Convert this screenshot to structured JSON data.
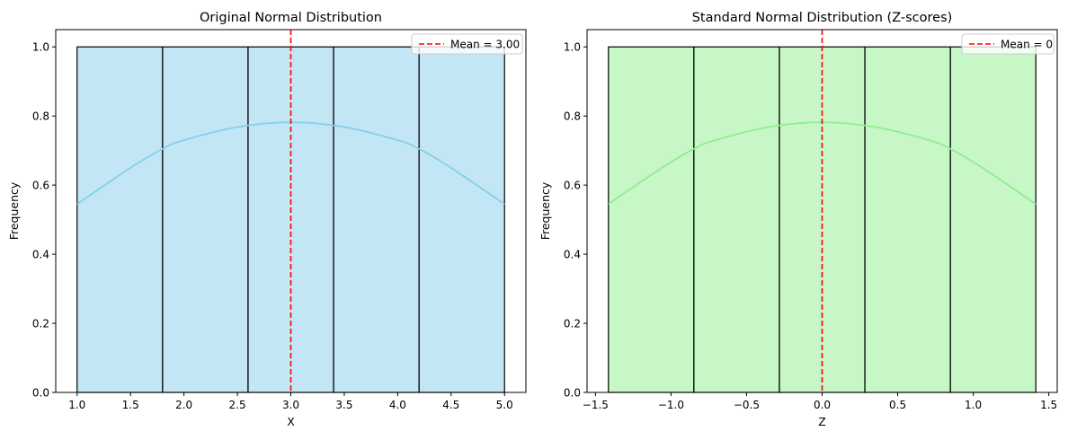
{
  "chart_data": [
    {
      "type": "bar",
      "subtype": "histogram_with_kde",
      "title": "Original Normal Distribution",
      "xlabel": "X",
      "ylabel": "Frequency",
      "xlim": [
        0.8,
        5.2
      ],
      "ylim": [
        0,
        1.05
      ],
      "xticks": [
        1.0,
        1.5,
        2.0,
        2.5,
        3.0,
        3.5,
        4.0,
        4.5,
        5.0
      ],
      "xtick_labels": [
        "1.0",
        "1.5",
        "2.0",
        "2.5",
        "3.0",
        "3.5",
        "4.0",
        "4.5",
        "5.0"
      ],
      "yticks": [
        0.0,
        0.2,
        0.4,
        0.6,
        0.8,
        1.0
      ],
      "ytick_labels": [
        "0.0",
        "0.2",
        "0.4",
        "0.6",
        "0.8",
        "1.0"
      ],
      "bins": [
        {
          "start": 1.0,
          "end": 1.8,
          "count": 1
        },
        {
          "start": 1.8,
          "end": 2.6,
          "count": 1
        },
        {
          "start": 2.6,
          "end": 3.4,
          "count": 1
        },
        {
          "start": 3.4,
          "end": 4.2,
          "count": 1
        },
        {
          "start": 4.2,
          "end": 5.0,
          "count": 1
        }
      ],
      "kde": {
        "x": [
          1.0,
          1.5,
          1.8,
          2.0,
          2.5,
          3.0,
          3.5,
          4.0,
          4.2,
          4.5,
          5.0
        ],
        "y": [
          0.545,
          0.65,
          0.705,
          0.73,
          0.768,
          0.782,
          0.768,
          0.73,
          0.705,
          0.65,
          0.545
        ]
      },
      "mean_line": {
        "x": 3.0,
        "label": "Mean = 3.00"
      },
      "legend_position": "upper right",
      "grid": false,
      "colors": {
        "fill": "#87ceeb",
        "kde": "#87ceeb",
        "edge": "#000000",
        "mean": "#ff0000"
      }
    },
    {
      "type": "bar",
      "subtype": "histogram_with_kde",
      "title": "Standard Normal Distribution (Z-scores)",
      "xlabel": "Z",
      "ylabel": "Frequency",
      "xlim": [
        -1.5556,
        1.5556
      ],
      "ylim": [
        0,
        1.05
      ],
      "xticks": [
        -1.5,
        -1.0,
        -0.5,
        0.0,
        0.5,
        1.0,
        1.5
      ],
      "xtick_labels": [
        "−1.5",
        "−1.0",
        "−0.5",
        "0.0",
        "0.5",
        "1.0",
        "1.5"
      ],
      "yticks": [
        0.0,
        0.2,
        0.4,
        0.6,
        0.8,
        1.0
      ],
      "ytick_labels": [
        "0.0",
        "0.2",
        "0.4",
        "0.6",
        "0.8",
        "1.0"
      ],
      "bins": [
        {
          "start": -1.4142,
          "end": -0.8485,
          "count": 1
        },
        {
          "start": -0.8485,
          "end": -0.2828,
          "count": 1
        },
        {
          "start": -0.2828,
          "end": 0.2828,
          "count": 1
        },
        {
          "start": 0.2828,
          "end": 0.8485,
          "count": 1
        },
        {
          "start": 0.8485,
          "end": 1.4142,
          "count": 1
        }
      ],
      "kde": {
        "x": [
          -1.4142,
          -1.0607,
          -0.8485,
          -0.7071,
          -0.3536,
          0.0,
          0.3536,
          0.7071,
          0.8485,
          1.0607,
          1.4142
        ],
        "y": [
          0.545,
          0.65,
          0.705,
          0.73,
          0.768,
          0.782,
          0.768,
          0.73,
          0.705,
          0.65,
          0.545
        ]
      },
      "mean_line": {
        "x": 0.0,
        "label": "Mean = 0"
      },
      "legend_position": "upper right",
      "grid": false,
      "colors": {
        "fill": "#90ee90",
        "kde": "#90ee90",
        "edge": "#000000",
        "mean": "#ff0000"
      }
    }
  ]
}
